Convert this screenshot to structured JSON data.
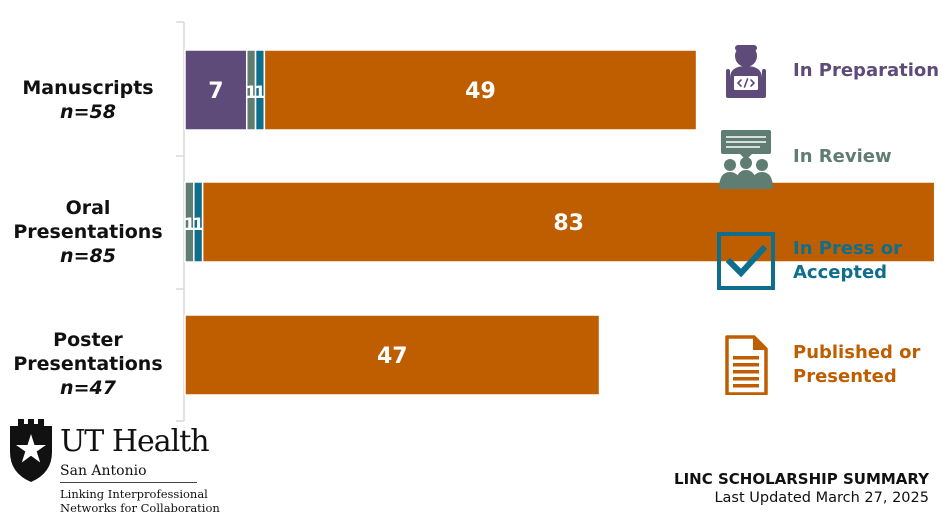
{
  "chart_data": {
    "type": "bar",
    "orientation": "horizontal",
    "stacked": true,
    "categories": [
      {
        "name": "Manuscripts",
        "name_lines": [
          "Manuscripts"
        ],
        "n_label": "n=58"
      },
      {
        "name": "Oral Presentations",
        "name_lines": [
          "Oral",
          "Presentations"
        ],
        "n_label": "n=85"
      },
      {
        "name": "Poster Presentations",
        "name_lines": [
          "Poster",
          "Presentations"
        ],
        "n_label": "n=47"
      }
    ],
    "series": [
      {
        "name": "In Preparation",
        "color": "#5e4b7a",
        "values": [
          7,
          0,
          0
        ],
        "icon": "person-laptop-icon"
      },
      {
        "name": "In Review",
        "color": "#5f7d72",
        "values": [
          1,
          1,
          0
        ],
        "icon": "presentation-group-icon"
      },
      {
        "name": "In Press or Accepted",
        "color": "#0f6e8c",
        "values": [
          1,
          1,
          0
        ],
        "icon": "checkbox-icon"
      },
      {
        "name": "Published or Presented",
        "color": "#bf5e00",
        "values": [
          49,
          83,
          47
        ],
        "icon": "document-icon"
      }
    ],
    "legend_lines": [
      [
        "In Preparation"
      ],
      [
        "In Review"
      ],
      [
        "In Press or",
        "Accepted"
      ],
      [
        "Published or",
        "Presented"
      ]
    ],
    "xlim": [
      0,
      90
    ],
    "grid": false,
    "legend_position": "right",
    "data_labels": true
  },
  "footer": {
    "title": "LINC SCHOLARSHIP SUMMARY",
    "updated": "Last Updated March 27, 2025"
  },
  "logo": {
    "org": "UT Health",
    "location": "San Antonio",
    "tagline_lines": [
      "Linking Interprofessional",
      "Networks for Collaboration"
    ]
  }
}
